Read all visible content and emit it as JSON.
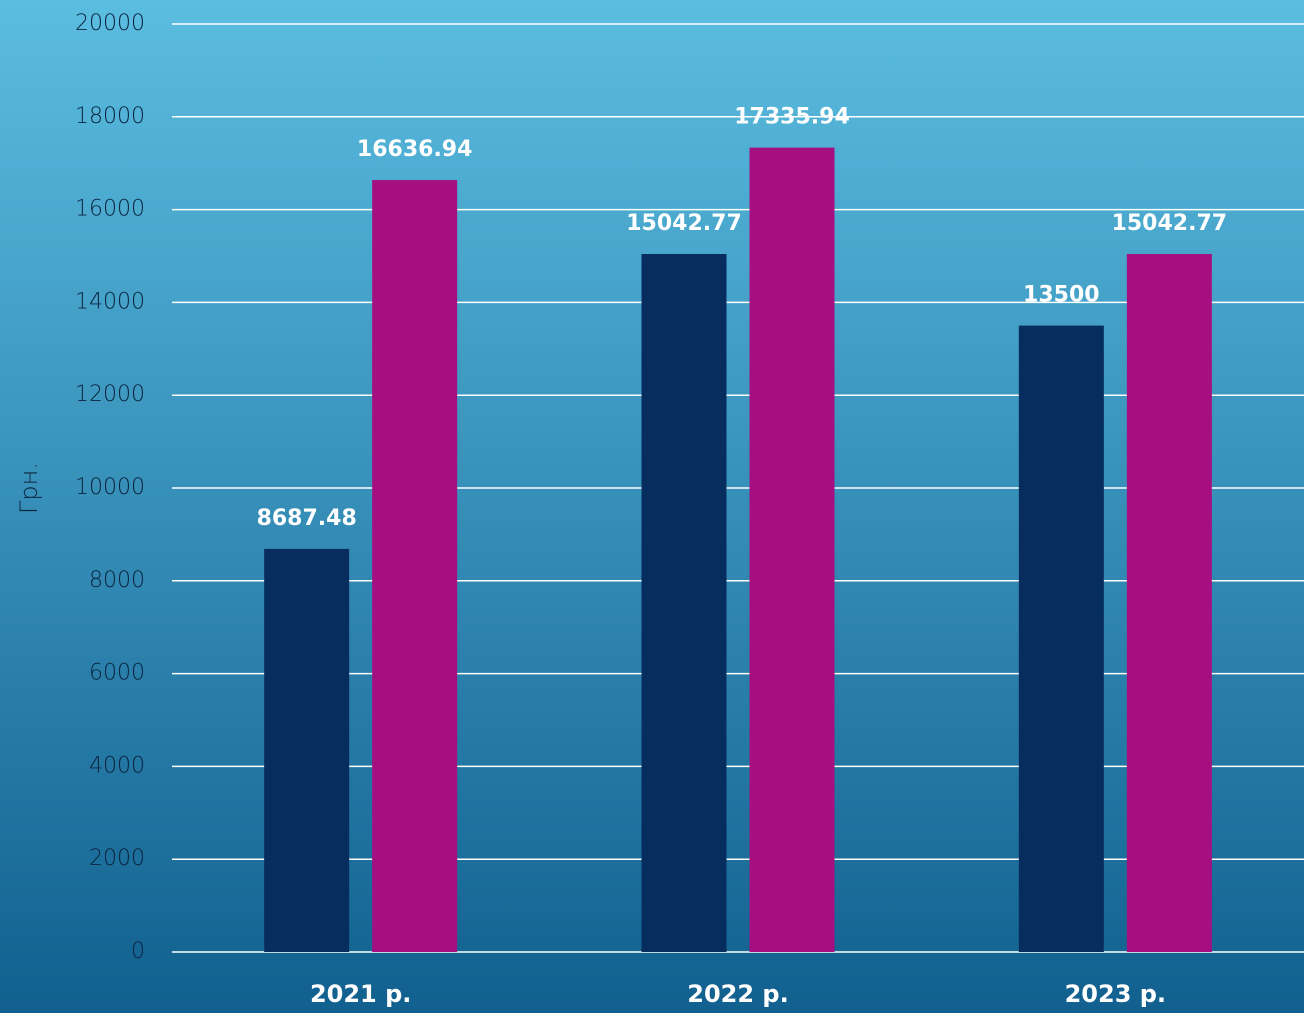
{
  "chart_data": {
    "type": "bar",
    "y_label": "Грн.",
    "categories": [
      "2021 р.",
      "2022 р.",
      "2023 р."
    ],
    "series": [
      {
        "color": "#062d5e",
        "values": [
          8687.48,
          15042.77,
          13500
        ]
      },
      {
        "color": "#a50f80",
        "values": [
          16636.94,
          17335.94,
          15042.77
        ]
      }
    ],
    "ylim": [
      0,
      20000
    ],
    "yticks": [
      0,
      2000,
      4000,
      6000,
      8000,
      10000,
      12000,
      14000,
      16000,
      18000,
      20000
    ],
    "grid": true
  }
}
